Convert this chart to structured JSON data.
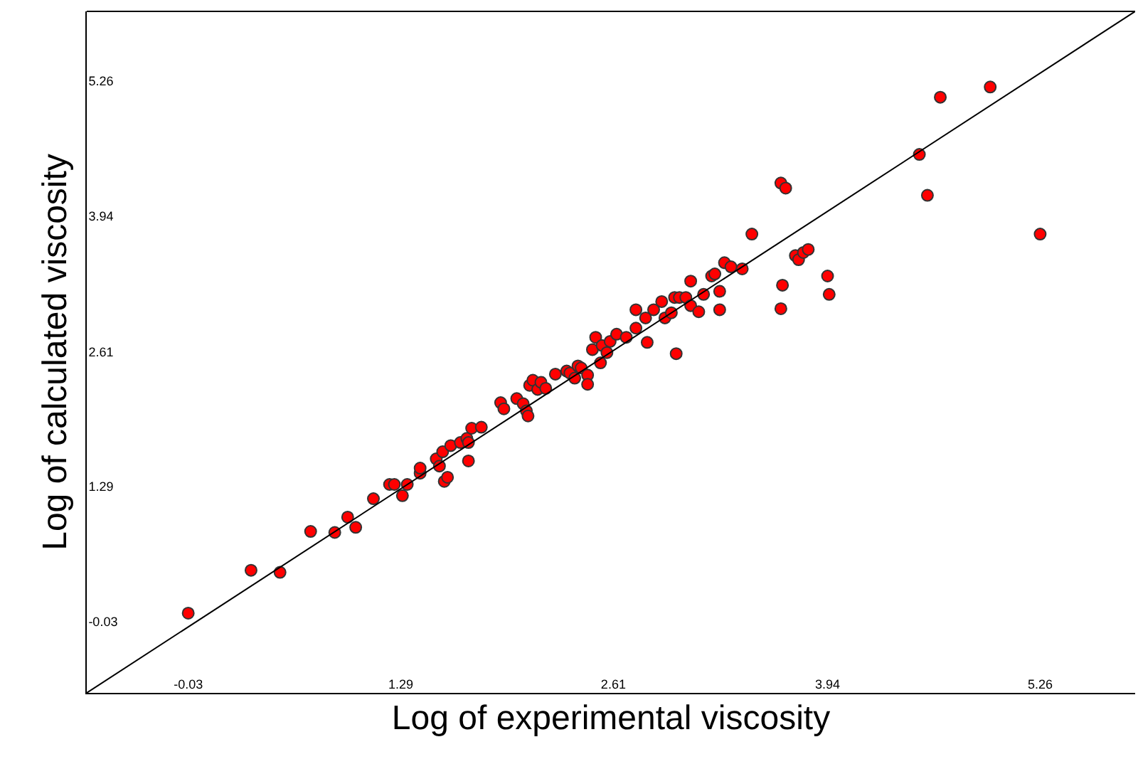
{
  "chart_data": {
    "type": "scatter",
    "xlabel": "Log of experimental viscosity",
    "ylabel": "Log of calculated viscosity",
    "xlim": [
      -0.66,
      5.85
    ],
    "ylim": [
      -0.73,
      5.94
    ],
    "xticks": [
      -0.03,
      1.29,
      2.61,
      3.94,
      5.26
    ],
    "yticks": [
      -0.03,
      1.29,
      2.61,
      3.94,
      5.26
    ],
    "marker": "circle",
    "series": [
      {
        "color": "#ff0000",
        "x": [
          -0.03,
          0.36,
          0.54,
          0.73,
          0.88,
          0.96,
          1.01,
          1.12,
          1.22,
          1.25,
          1.3,
          1.33,
          1.41,
          1.41,
          1.51,
          1.53,
          1.55,
          1.56,
          1.58,
          1.6,
          1.66,
          1.7,
          1.71,
          1.71,
          1.73,
          1.79,
          1.91,
          1.93,
          2.01,
          2.05,
          2.07,
          2.08,
          2.09,
          2.11,
          2.14,
          2.16,
          2.19,
          2.25,
          2.32,
          2.34,
          2.37,
          2.39,
          2.41,
          2.45,
          2.45,
          2.48,
          2.5,
          2.53,
          2.54,
          2.57,
          2.59,
          2.63,
          2.69,
          2.75,
          2.75,
          2.81,
          2.82,
          2.86,
          2.91,
          2.93,
          2.97,
          2.99,
          3.0,
          3.02,
          3.06,
          3.09,
          3.09,
          3.14,
          3.17,
          3.22,
          3.24,
          3.27,
          3.27,
          3.3,
          3.34,
          3.41,
          3.47,
          3.65,
          3.66,
          3.65,
          3.68,
          3.74,
          3.76,
          3.79,
          3.82,
          3.94,
          3.95,
          4.51,
          4.56,
          4.64,
          4.95,
          5.26
        ],
        "values": [
          0.05,
          0.47,
          0.45,
          0.85,
          0.84,
          0.99,
          0.89,
          1.17,
          1.31,
          1.31,
          1.2,
          1.31,
          1.42,
          1.47,
          1.56,
          1.49,
          1.63,
          1.34,
          1.38,
          1.69,
          1.72,
          1.76,
          1.54,
          1.72,
          1.86,
          1.87,
          2.11,
          2.05,
          2.15,
          2.1,
          2.03,
          1.98,
          2.28,
          2.33,
          2.24,
          2.31,
          2.25,
          2.39,
          2.42,
          2.4,
          2.35,
          2.47,
          2.45,
          2.38,
          2.29,
          2.63,
          2.75,
          2.5,
          2.67,
          2.6,
          2.71,
          2.78,
          2.75,
          2.84,
          3.02,
          2.94,
          2.7,
          3.02,
          3.1,
          2.94,
          2.99,
          3.14,
          2.59,
          3.14,
          3.14,
          3.3,
          3.06,
          3.0,
          3.17,
          3.35,
          3.37,
          3.02,
          3.2,
          3.48,
          3.44,
          3.42,
          3.76,
          3.03,
          3.26,
          4.26,
          4.21,
          3.55,
          3.51,
          3.58,
          3.61,
          3.35,
          3.17,
          4.54,
          4.14,
          5.1,
          5.2,
          3.76
        ]
      },
      {
        "type": "line",
        "color": "#000000",
        "marker": "none",
        "x": [
          -0.66,
          5.85
        ],
        "values": [
          -0.73,
          5.94
        ]
      }
    ]
  }
}
